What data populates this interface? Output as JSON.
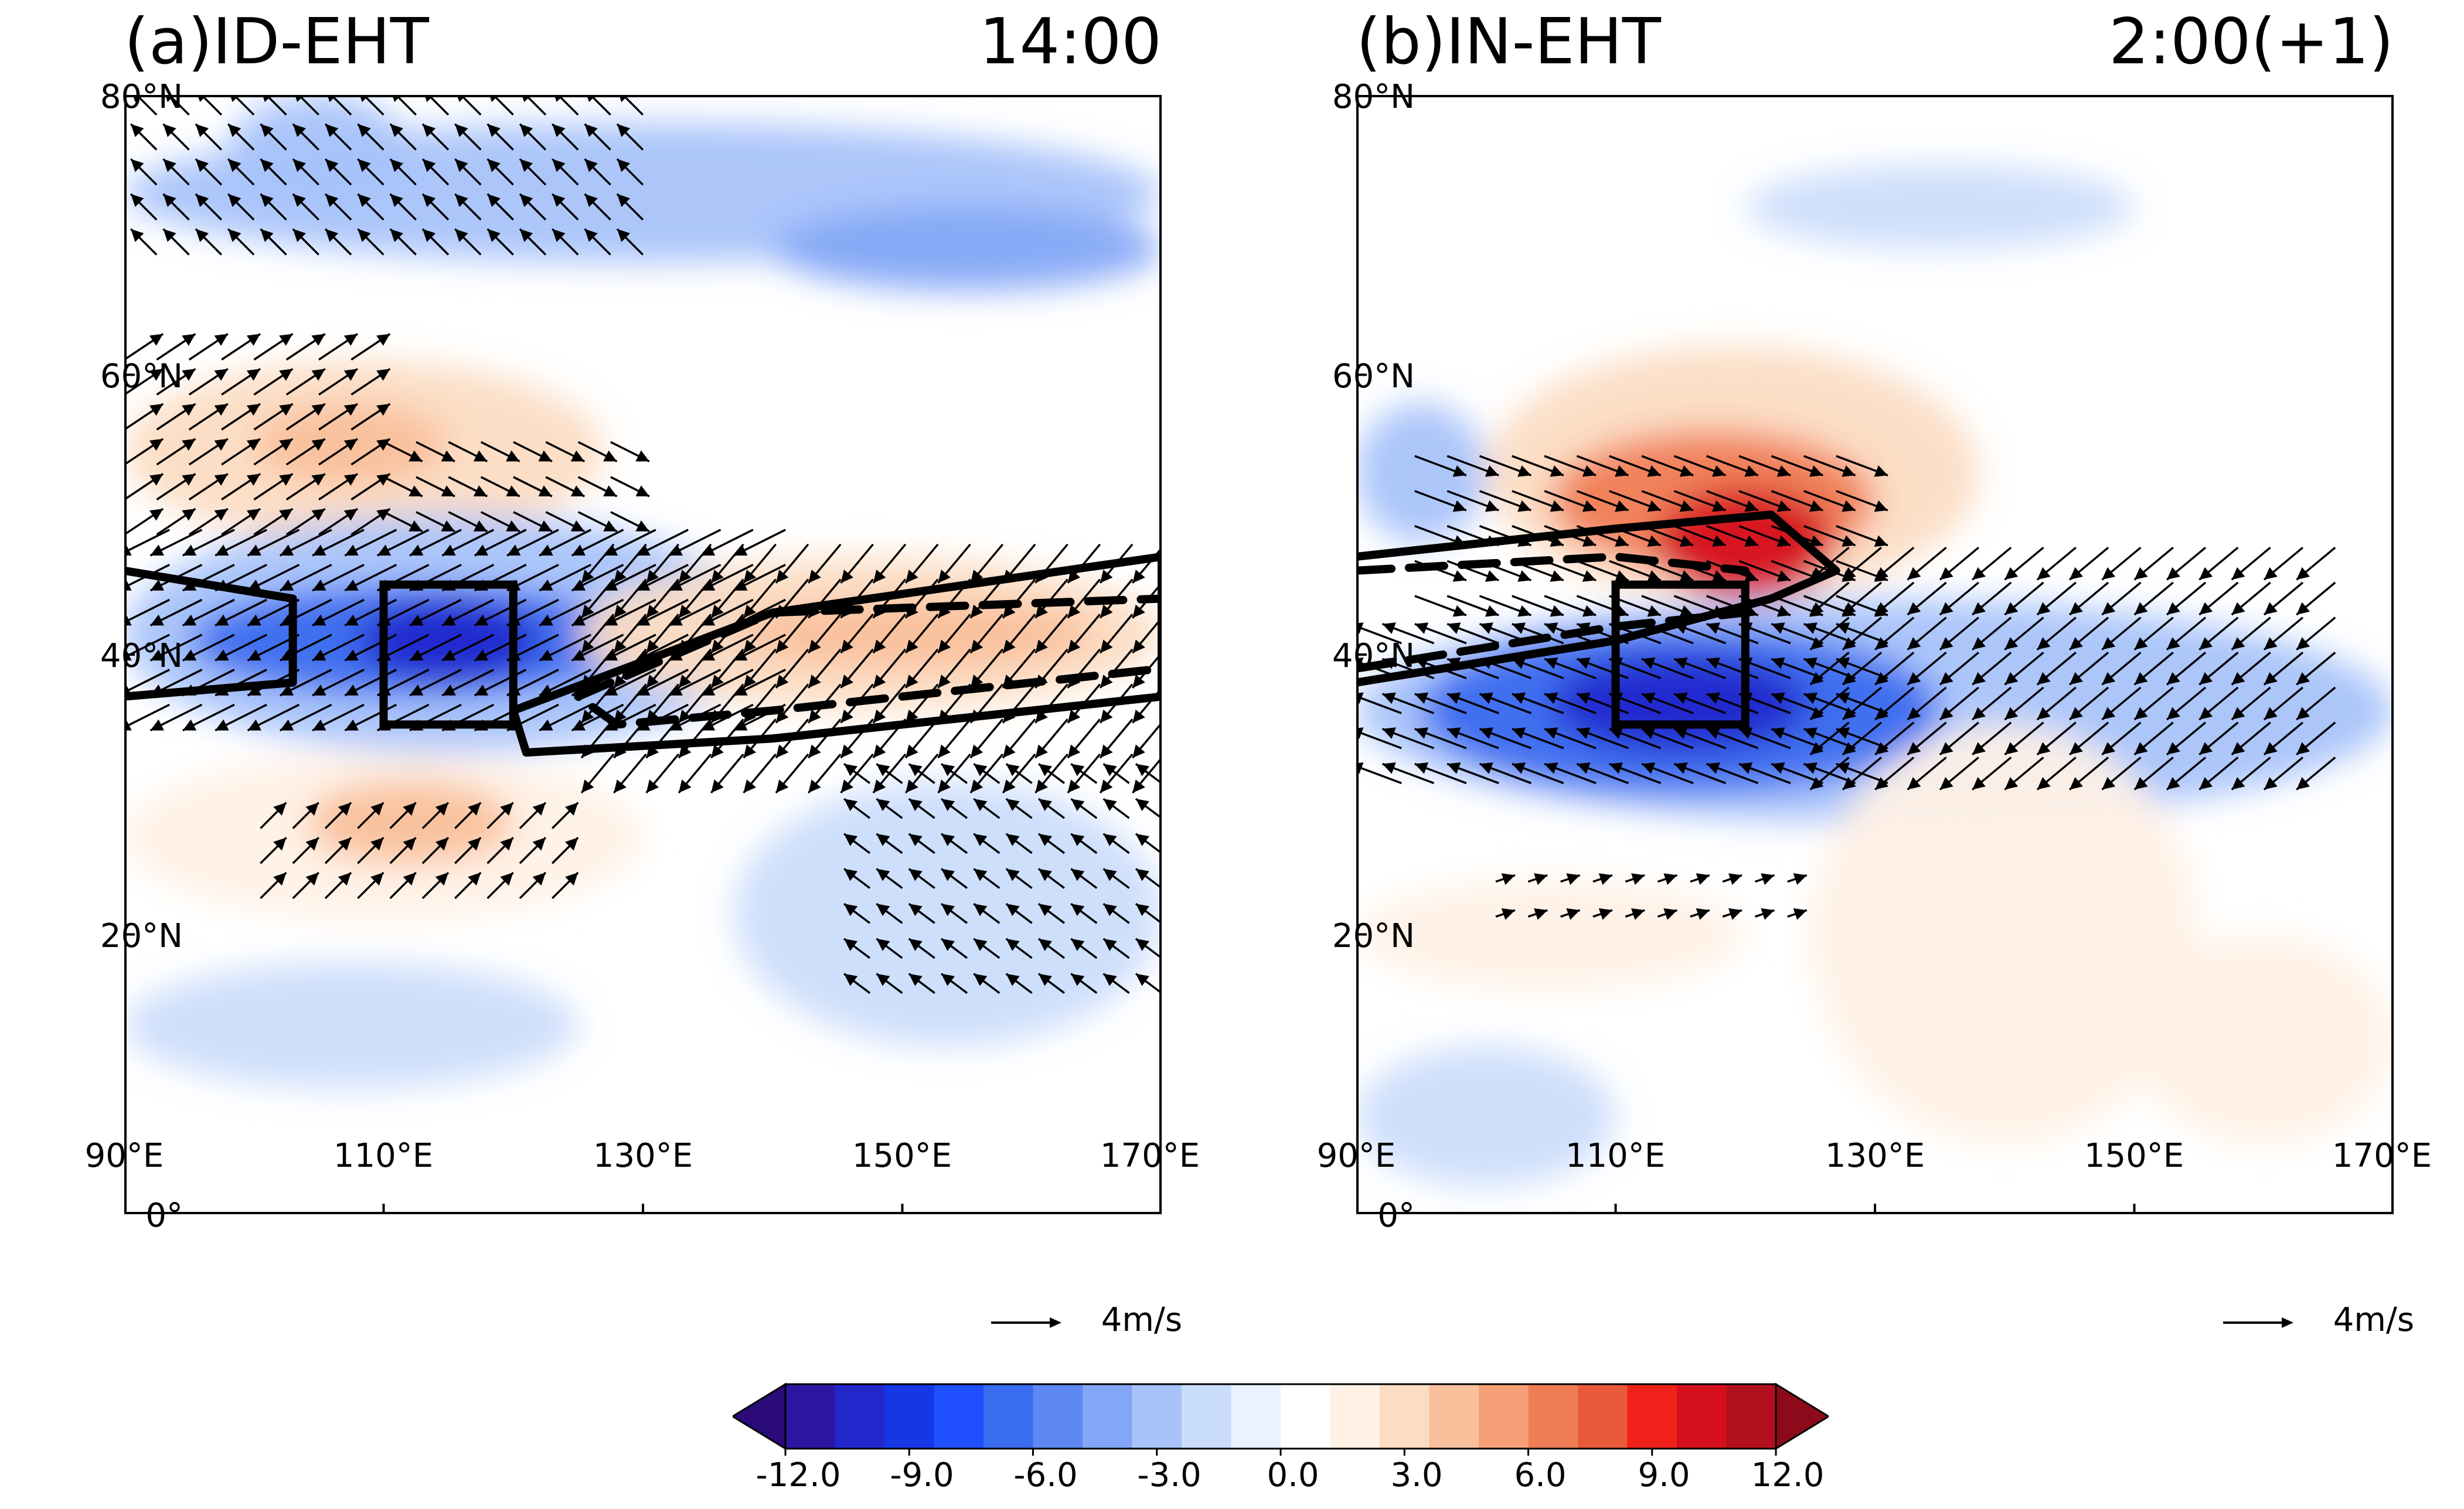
{
  "colors": {
    "levels": [
      "#2b0a7a",
      "#2e16a3",
      "#2227cc",
      "#1637e6",
      "#1f4fff",
      "#3a6cf0",
      "#5e88f2",
      "#83a6f7",
      "#a8c3fa",
      "#cbddfc",
      "#eaf2ff",
      "#ffffff",
      "#fff1e6",
      "#fcdcc3",
      "#f9c09c",
      "#f5a077",
      "#f07d56",
      "#e85a3a",
      "#f0201a",
      "#d5101c",
      "#b3101e",
      "#8c0a1a"
    ],
    "blue_strong": "#1a2fd6",
    "blue_mid": "#4f7ef0",
    "blue_light": "#9fc0f8",
    "red_light": "#f7b89a",
    "red_mid": "#ef7e5c",
    "red_strong": "#e31a1c",
    "ink": "#000000"
  },
  "chart_data": [
    {
      "type": "heatmap",
      "panel": "a",
      "title": "(a)ID-EHT",
      "time_label": "14:00",
      "xlim": [
        90,
        170
      ],
      "ylim": [
        0,
        80
      ],
      "x_ticks": [
        90,
        110,
        130,
        150,
        170
      ],
      "y_ticks": [
        0,
        20,
        40,
        60,
        80
      ],
      "x_tick_labels": [
        "90°E",
        "110°E",
        "130°E",
        "150°E",
        "170°E"
      ],
      "y_tick_labels": [
        "0°",
        "20°N",
        "40°N",
        "60°N",
        "80°N"
      ],
      "box": {
        "lon": [
          110,
          120
        ],
        "lat": [
          35,
          45
        ]
      },
      "anomalies": [
        {
          "lon": [
            90,
            170
          ],
          "lat": [
            68,
            78
          ],
          "value": -2.5
        },
        {
          "lon": [
            98,
            112
          ],
          "lat": [
            72,
            80
          ],
          "value": -3.5
        },
        {
          "lon": [
            140,
            170
          ],
          "lat": [
            66,
            72
          ],
          "value": -4.5
        },
        {
          "lon": [
            90,
            127
          ],
          "lat": [
            48,
            61
          ],
          "value": 2.5
        },
        {
          "lon": [
            100,
            115
          ],
          "lat": [
            52,
            58
          ],
          "value": 4.5
        },
        {
          "lon": [
            90,
            140
          ],
          "lat": [
            33,
            50
          ],
          "value": -3.5
        },
        {
          "lon": [
            95,
            130
          ],
          "lat": [
            37,
            45
          ],
          "value": -7
        },
        {
          "lon": [
            108,
            122
          ],
          "lat": [
            38,
            44
          ],
          "value": -10
        },
        {
          "lon": [
            125,
            170
          ],
          "lat": [
            36,
            47
          ],
          "value": 2.5
        },
        {
          "lon": [
            137,
            165
          ],
          "lat": [
            39,
            44
          ],
          "value": 4
        },
        {
          "lon": [
            90,
            130
          ],
          "lat": [
            21,
            33
          ],
          "value": 2
        },
        {
          "lon": [
            104,
            120
          ],
          "lat": [
            25,
            31
          ],
          "value": 4
        },
        {
          "lon": [
            137,
            170
          ],
          "lat": [
            12,
            31
          ],
          "value": -2
        },
        {
          "lon": [
            90,
            125
          ],
          "lat": [
            9,
            18
          ],
          "value": -1.5
        }
      ],
      "arrow_regions": [
        {
          "lon": [
            90,
            130
          ],
          "lat": [
            68,
            80
          ],
          "u": -2,
          "v": 2
        },
        {
          "lon": [
            90,
            110
          ],
          "lat": [
            48,
            62
          ],
          "u": 3,
          "v": 2
        },
        {
          "lon": [
            110,
            130
          ],
          "lat": [
            48,
            56
          ],
          "u": 3,
          "v": -1.5
        },
        {
          "lon": [
            90,
            140
          ],
          "lat": [
            34,
            48
          ],
          "u": -4,
          "v": -2
        },
        {
          "lon": [
            125,
            170
          ],
          "lat": [
            30,
            47
          ],
          "u": -2.5,
          "v": -3
        },
        {
          "lon": [
            100,
            125
          ],
          "lat": [
            22,
            30
          ],
          "u": 2,
          "v": 2
        },
        {
          "lon": [
            145,
            170
          ],
          "lat": [
            15,
            32
          ],
          "u": -2,
          "v": 1.5
        }
      ],
      "contours": [
        {
          "style": "solid",
          "lon": [
            90,
            103,
            103,
            90
          ],
          "lat": [
            46,
            44,
            38,
            37
          ]
        },
        {
          "style": "solid",
          "lon": [
            120,
            140,
            170,
            170,
            140,
            121,
            120
          ],
          "lat": [
            36,
            43,
            47,
            37,
            34,
            33,
            36
          ]
        },
        {
          "style": "dashed",
          "lon": [
            125,
            140,
            170,
            170,
            140,
            128,
            125
          ],
          "lat": [
            37,
            43,
            44,
            39,
            36,
            35,
            37
          ]
        }
      ],
      "ref_vector": "4m/s"
    },
    {
      "type": "heatmap",
      "panel": "b",
      "title": "(b)IN-EHT",
      "time_label": "2:00(+1)",
      "xlim": [
        90,
        170
      ],
      "ylim": [
        0,
        80
      ],
      "x_ticks": [
        90,
        110,
        130,
        150,
        170
      ],
      "y_ticks": [
        0,
        20,
        40,
        60,
        80
      ],
      "x_tick_labels": [
        "90°E",
        "110°E",
        "130°E",
        "150°E",
        "170°E"
      ],
      "y_tick_labels": [
        "0°",
        "20°N",
        "40°N",
        "60°N",
        "80°N"
      ],
      "box": {
        "lon": [
          110,
          120
        ],
        "lat": [
          35,
          45
        ]
      },
      "anomalies": [
        {
          "lon": [
            120,
            150
          ],
          "lat": [
            69,
            75
          ],
          "value": -2
        },
        {
          "lon": [
            90,
            100
          ],
          "lat": [
            48,
            58
          ],
          "value": -3
        },
        {
          "lon": [
            100,
            138
          ],
          "lat": [
            44,
            62
          ],
          "value": 3
        },
        {
          "lon": [
            105,
            130
          ],
          "lat": [
            46,
            56
          ],
          "value": 6
        },
        {
          "lon": [
            113,
            127
          ],
          "lat": [
            44,
            52
          ],
          "value": 10
        },
        {
          "lon": [
            90,
            170
          ],
          "lat": [
            28,
            44
          ],
          "value": -3
        },
        {
          "lon": [
            95,
            135
          ],
          "lat": [
            30,
            42
          ],
          "value": -7
        },
        {
          "lon": [
            105,
            125
          ],
          "lat": [
            33,
            40
          ],
          "value": -10
        },
        {
          "lon": [
            125,
            155
          ],
          "lat": [
            5,
            35
          ],
          "value": 1.5
        },
        {
          "lon": [
            150,
            170
          ],
          "lat": [
            5,
            20
          ],
          "value": 2
        },
        {
          "lon": [
            90,
            120
          ],
          "lat": [
            16,
            24
          ],
          "value": 1.5
        },
        {
          "lon": [
            90,
            110
          ],
          "lat": [
            2,
            12
          ],
          "value": -1.5
        }
      ],
      "arrow_regions": [
        {
          "lon": [
            95,
            130
          ],
          "lat": [
            42,
            55
          ],
          "u": 4,
          "v": -1.5
        },
        {
          "lon": [
            90,
            130
          ],
          "lat": [
            30,
            42
          ],
          "u": -4,
          "v": 1.5
        },
        {
          "lon": [
            125,
            165
          ],
          "lat": [
            30,
            47
          ],
          "u": -3,
          "v": -2.5
        },
        {
          "lon": [
            100,
            125
          ],
          "lat": [
            20,
            25
          ],
          "u": 1.5,
          "v": 0.5
        }
      ],
      "contours": [
        {
          "style": "solid",
          "lon": [
            90,
            110,
            122,
            127,
            122,
            110,
            90
          ],
          "lat": [
            47,
            49,
            50,
            46,
            44,
            41,
            38
          ]
        },
        {
          "style": "dashed",
          "lon": [
            90,
            110,
            120
          ],
          "lat": [
            46,
            47,
            46
          ]
        },
        {
          "style": "dashed",
          "lon": [
            90,
            110,
            120
          ],
          "lat": [
            39,
            42,
            43
          ]
        }
      ],
      "ref_vector": "4m/s"
    }
  ],
  "colorbar": {
    "min": -12,
    "max": 12,
    "tick_labels": [
      "-12.0",
      "-9.0",
      "-6.0",
      "-3.0",
      "0.0",
      "3.0",
      "6.0",
      "9.0",
      "12.0"
    ],
    "extend": "both"
  }
}
